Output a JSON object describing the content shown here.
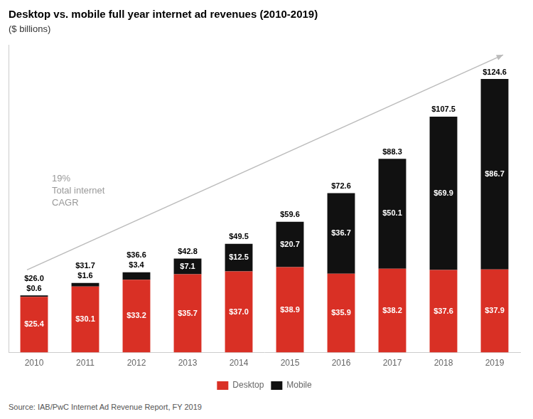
{
  "chart_data": {
    "type": "bar",
    "title": "Desktop vs. mobile full year internet ad revenues (2010-2019)",
    "subtitle": "($ billions)",
    "categories": [
      "2010",
      "2011",
      "2012",
      "2013",
      "2014",
      "2015",
      "2016",
      "2017",
      "2018",
      "2019"
    ],
    "series": [
      {
        "name": "Desktop",
        "color": "#d93025",
        "values": [
          25.4,
          30.1,
          33.2,
          35.7,
          37.0,
          38.9,
          35.9,
          38.2,
          37.6,
          37.9
        ],
        "value_labels": [
          "$25.4",
          "$30.1",
          "$33.2",
          "$35.7",
          "$37.0",
          "$38.9",
          "$35.9",
          "$38.2",
          "$37.6",
          "$37.9"
        ]
      },
      {
        "name": "Mobile",
        "color": "#111111",
        "values": [
          0.6,
          1.6,
          3.4,
          7.1,
          12.5,
          20.7,
          36.7,
          50.1,
          69.9,
          86.7
        ],
        "value_labels": [
          "$0.6",
          "$1.6",
          "$3.4",
          "$7.1",
          "$12.5",
          "$20.7",
          "$36.7",
          "$50.1",
          "$69.9",
          "$86.7"
        ]
      }
    ],
    "totals": [
      26.0,
      31.7,
      36.6,
      42.8,
      49.5,
      59.6,
      72.6,
      88.3,
      107.5,
      124.6
    ],
    "total_labels": [
      "$26.0",
      "$31.7",
      "$36.6",
      "$42.8",
      "$49.5",
      "$59.6",
      "$72.6",
      "$88.3",
      "$107.5",
      "$124.6"
    ],
    "annotations": [
      "19%",
      "Total internet",
      "CAGR"
    ],
    "source": "Source: IAB/PwC Internet Ad Revenue Report, FY 2019",
    "ylim": [
      0,
      140
    ],
    "stacked": true,
    "data_labels": true,
    "grid": false,
    "legend": "bottom",
    "tick_labels": "x"
  }
}
